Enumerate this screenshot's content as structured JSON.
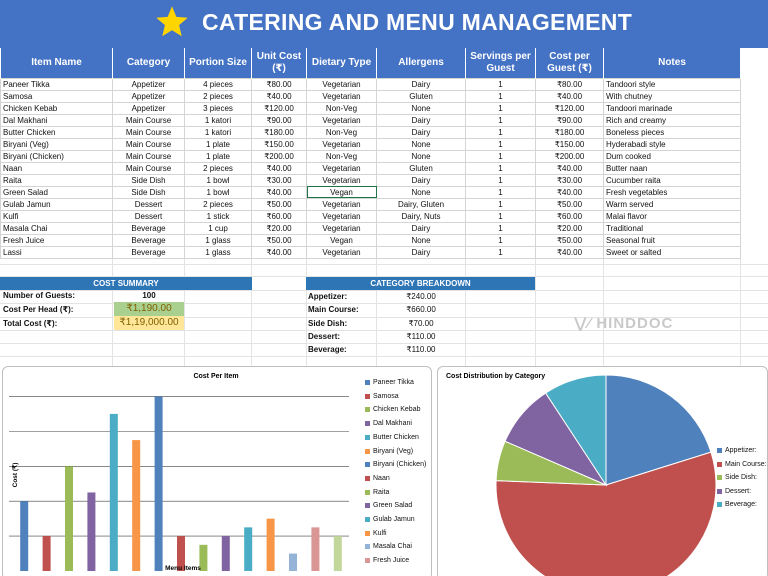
{
  "title": "CATERING AND MENU MANAGEMENT",
  "table": {
    "headers": [
      "Item Name",
      "Category",
      "Portion Size",
      "Unit Cost (₹)",
      "Dietary Type",
      "Allergens",
      "Servings per Guest",
      "Cost per Guest (₹)",
      "Notes"
    ],
    "rows": [
      [
        "Paneer Tikka",
        "Appetizer",
        "4 pieces",
        "₹80.00",
        "Vegetarian",
        "Dairy",
        "1",
        "₹80.00",
        "Tandoori style"
      ],
      [
        "Samosa",
        "Appetizer",
        "2 pieces",
        "₹40.00",
        "Vegetarian",
        "Gluten",
        "1",
        "₹40.00",
        "With chutney"
      ],
      [
        "Chicken Kebab",
        "Appetizer",
        "3 pieces",
        "₹120.00",
        "Non-Veg",
        "None",
        "1",
        "₹120.00",
        "Tandoori marinade"
      ],
      [
        "Dal Makhani",
        "Main Course",
        "1 katori",
        "₹90.00",
        "Vegetarian",
        "Dairy",
        "1",
        "₹90.00",
        "Rich and creamy"
      ],
      [
        "Butter Chicken",
        "Main Course",
        "1 katori",
        "₹180.00",
        "Non-Veg",
        "Dairy",
        "1",
        "₹180.00",
        "Boneless pieces"
      ],
      [
        "Biryani (Veg)",
        "Main Course",
        "1 plate",
        "₹150.00",
        "Vegetarian",
        "None",
        "1",
        "₹150.00",
        "Hyderabadi style"
      ],
      [
        "Biryani (Chicken)",
        "Main Course",
        "1 plate",
        "₹200.00",
        "Non-Veg",
        "None",
        "1",
        "₹200.00",
        "Dum cooked"
      ],
      [
        "Naan",
        "Main Course",
        "2 pieces",
        "₹40.00",
        "Vegetarian",
        "Gluten",
        "1",
        "₹40.00",
        "Butter naan"
      ],
      [
        "Raita",
        "Side Dish",
        "1 bowl",
        "₹30.00",
        "Vegetarian",
        "Dairy",
        "1",
        "₹30.00",
        "Cucumber raita"
      ],
      [
        "Green Salad",
        "Side Dish",
        "1 bowl",
        "₹40.00",
        "Vegan",
        "None",
        "1",
        "₹40.00",
        "Fresh vegetables"
      ],
      [
        "Gulab Jamun",
        "Dessert",
        "2 pieces",
        "₹50.00",
        "Vegetarian",
        "Dairy, Gluten",
        "1",
        "₹50.00",
        "Warm served"
      ],
      [
        "Kulfi",
        "Dessert",
        "1 stick",
        "₹60.00",
        "Vegetarian",
        "Dairy, Nuts",
        "1",
        "₹60.00",
        "Malai flavor"
      ],
      [
        "Masala Chai",
        "Beverage",
        "1 cup",
        "₹20.00",
        "Vegetarian",
        "Dairy",
        "1",
        "₹20.00",
        "Traditional"
      ],
      [
        "Fresh Juice",
        "Beverage",
        "1 glass",
        "₹50.00",
        "Vegan",
        "None",
        "1",
        "₹50.00",
        "Seasonal fruit"
      ],
      [
        "Lassi",
        "Beverage",
        "1 glass",
        "₹40.00",
        "Vegetarian",
        "Dairy",
        "1",
        "₹40.00",
        "Sweet or salted"
      ]
    ]
  },
  "cost_summary": {
    "header": "COST SUMMARY",
    "guests_label": "Number of Guests:",
    "guests_value": "100",
    "per_head_label": "Cost Per Head (₹):",
    "per_head_value": "₹1,190.00",
    "total_label": "Total Cost (₹):",
    "total_value": "₹1,19,000.00"
  },
  "category_breakdown": {
    "header": "CATEGORY BREAKDOWN",
    "items": [
      {
        "label": "Appetizer:",
        "value": "₹240.00"
      },
      {
        "label": "Main Course:",
        "value": "₹660.00"
      },
      {
        "label": "Side Dish:",
        "value": "₹70.00"
      },
      {
        "label": "Dessert:",
        "value": "₹110.00"
      },
      {
        "label": "Beverage:",
        "value": "₹110.00"
      }
    ]
  },
  "watermark": "HINDDOC",
  "colors": {
    "header_blue": "#4472c4",
    "summary_blue": "#2e75b6",
    "green_box": "#a9d08e",
    "yellow_box": "#ffe699",
    "selection_green": "#217346"
  },
  "chart_data": [
    {
      "type": "bar",
      "title": "Cost Per Item",
      "xlabel": "Menu Items",
      "ylabel": "Cost (₹)",
      "ylim": [
        0,
        220
      ],
      "grid": true,
      "legend_position": "right",
      "categories": [
        "Paneer Tikka",
        "Samosa",
        "Chicken Kebab",
        "Dal Makhani",
        "Butter Chicken",
        "Biryani (Veg)",
        "Biryani (Chicken)",
        "Naan",
        "Raita",
        "Green Salad",
        "Gulab Jamun",
        "Kulfi",
        "Masala Chai",
        "Fresh Juice",
        "Lassi"
      ],
      "values": [
        80,
        40,
        120,
        90,
        180,
        150,
        200,
        40,
        30,
        40,
        50,
        60,
        20,
        50,
        40
      ],
      "colors": [
        "#4f81bd",
        "#c0504d",
        "#9bbb59",
        "#8064a2",
        "#4bacc6",
        "#f79646",
        "#4f81bd",
        "#c0504d",
        "#9bbb59",
        "#8064a2",
        "#4bacc6",
        "#f79646",
        "#95b3d7",
        "#d99694",
        "#c3d69b"
      ],
      "legend_visible": [
        "Paneer Tikka",
        "Samosa",
        "Chicken Kebab",
        "Dal Makhani",
        "Butter Chicken",
        "Biryani (Veg)",
        "Biryani (Chicken)",
        "Naan",
        "Raita",
        "Green Salad",
        "Gulab Jamun",
        "Kulfi",
        "Masala Chai",
        "Fresh Juice"
      ]
    },
    {
      "type": "pie",
      "title": "Cost Distribution by Category",
      "legend_position": "right",
      "categories": [
        "Appetizer:",
        "Main Course:",
        "Side Dish:",
        "Dessert:",
        "Beverage:"
      ],
      "values": [
        240,
        660,
        70,
        110,
        110
      ],
      "colors": [
        "#4f81bd",
        "#c0504d",
        "#9bbb59",
        "#8064a2",
        "#4bacc6"
      ]
    }
  ]
}
